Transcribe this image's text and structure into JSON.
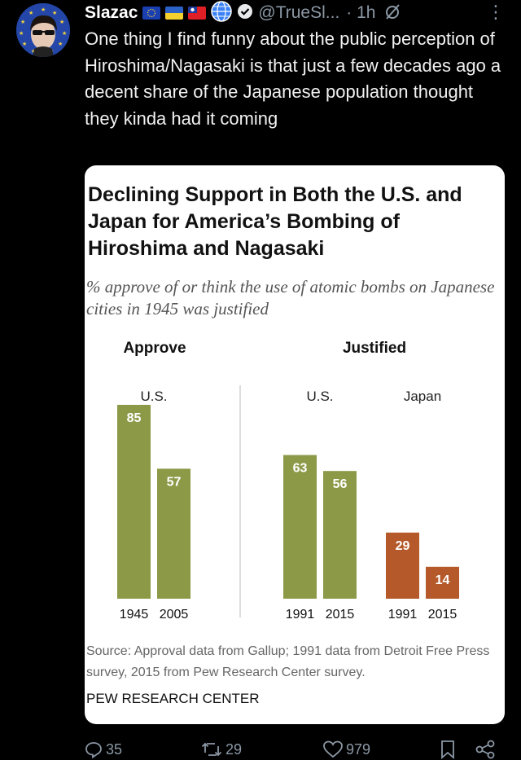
{
  "author": {
    "name": "Slazac",
    "handle": "@TrueSl...",
    "time": "· 1h",
    "avatar_icon": "avatar-icon",
    "verified_icon": "verified-badge-icon"
  },
  "tweet": {
    "text": "One thing I find funny about the public perception of Hiroshima/Nagasaki is that just a few decades ago a decent share of the Japanese population thought they kinda had it coming"
  },
  "chart_card": {
    "title": "Declining Support in Both the U.S. and Japan for America’s Bombing of Hiroshima and Nagasaki",
    "subtitle": "% approve of or think the use of atomic bombs on Japanese cities in 1945 was justified",
    "source": "Source: Approval data from Gallup; 1991 data from Detroit Free Press survey, 2015 from Pew Research Center survey.",
    "publisher": "PEW RESEARCH CENTER"
  },
  "chart_data": {
    "type": "bar",
    "groups": [
      {
        "heading": "Approve",
        "country": "U.S.",
        "categories": [
          "1945",
          "2005"
        ],
        "values": [
          85,
          57
        ],
        "color": "#8c9a48"
      },
      {
        "heading": "Justified",
        "country": "U.S.",
        "categories": [
          "1991",
          "2015"
        ],
        "values": [
          63,
          56
        ],
        "color": "#8c9a48"
      },
      {
        "heading": "",
        "country": "Japan",
        "categories": [
          "1991",
          "2015"
        ],
        "values": [
          29,
          14
        ],
        "color": "#b5592a"
      }
    ],
    "ylim": [
      0,
      100
    ],
    "grid": false,
    "colors": {
      "us": "#8c9a48",
      "japan": "#b5592a"
    }
  },
  "actions": {
    "replies": "35",
    "retweets": "29",
    "likes": "979"
  },
  "colors": {
    "background": "#000000",
    "text": "#e7e9ea",
    "muted": "#8b98a5",
    "verified": "#e7e9ea"
  }
}
